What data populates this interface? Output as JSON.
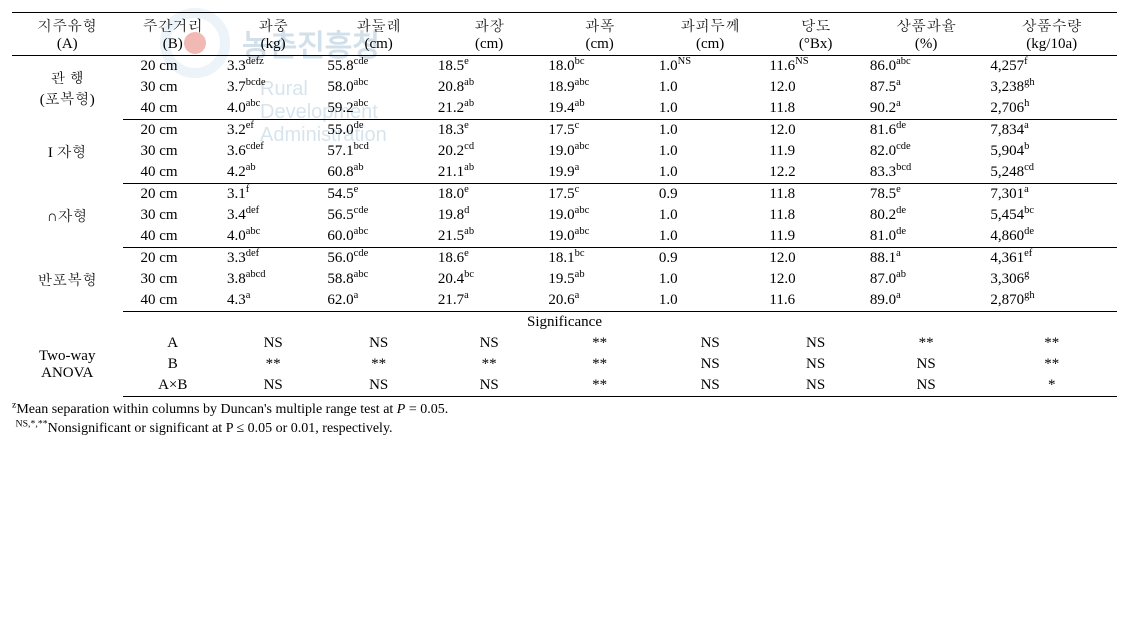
{
  "watermark": {
    "kr": "농촌진흥청",
    "en": "Rural Development Administration"
  },
  "headers": [
    {
      "l1": "지주유형",
      "l2": "(A)"
    },
    {
      "l1": "주간거리",
      "l2": "(B)"
    },
    {
      "l1": "과중",
      "l2": "(kg)"
    },
    {
      "l1": "과둘레",
      "l2": "(cm)"
    },
    {
      "l1": "과장",
      "l2": "(cm)"
    },
    {
      "l1": "과폭",
      "l2": "(cm)"
    },
    {
      "l1": "과피두께",
      "l2": "(cm)"
    },
    {
      "l1": "당도",
      "l2": "(°Bx)"
    },
    {
      "l1": "상품과율",
      "l2": "(%)"
    },
    {
      "l1": "상품수량",
      "l2": "(kg/10a)"
    }
  ],
  "groups": [
    {
      "label": "관    행\n(포복형)",
      "rows": [
        {
          "b": "20 cm",
          "c": [
            {
              "v": "3.3",
              "s": "defz"
            },
            {
              "v": "55.8",
              "s": "cde"
            },
            {
              "v": "18.5",
              "s": "e"
            },
            {
              "v": "18.0",
              "s": "bc"
            },
            {
              "v": "1.0",
              "s": "NS"
            },
            {
              "v": "11.6",
              "s": "NS"
            },
            {
              "v": "86.0",
              "s": "abc"
            },
            {
              "v": "4,257",
              "s": "f"
            }
          ]
        },
        {
          "b": "30 cm",
          "c": [
            {
              "v": "3.7",
              "s": "bcde"
            },
            {
              "v": "58.0",
              "s": "abc"
            },
            {
              "v": "20.8",
              "s": "ab"
            },
            {
              "v": "18.9",
              "s": "abc"
            },
            {
              "v": "1.0",
              "s": ""
            },
            {
              "v": "12.0",
              "s": ""
            },
            {
              "v": "87.5",
              "s": "a"
            },
            {
              "v": "3,238",
              "s": "gh"
            }
          ]
        },
        {
          "b": "40 cm",
          "c": [
            {
              "v": "4.0",
              "s": "abc"
            },
            {
              "v": "59.2",
              "s": "abc"
            },
            {
              "v": "21.2",
              "s": "ab"
            },
            {
              "v": "19.4",
              "s": "ab"
            },
            {
              "v": "1.0",
              "s": ""
            },
            {
              "v": "11.8",
              "s": ""
            },
            {
              "v": "90.2",
              "s": "a"
            },
            {
              "v": "2,706",
              "s": "h"
            }
          ]
        }
      ]
    },
    {
      "label": "I 자형",
      "rows": [
        {
          "b": "20 cm",
          "c": [
            {
              "v": "3.2",
              "s": "ef"
            },
            {
              "v": "55.0",
              "s": "de"
            },
            {
              "v": "18.3",
              "s": "e"
            },
            {
              "v": "17.5",
              "s": "c"
            },
            {
              "v": "1.0",
              "s": ""
            },
            {
              "v": "12.0",
              "s": ""
            },
            {
              "v": "81.6",
              "s": "de"
            },
            {
              "v": "7,834",
              "s": "a"
            }
          ]
        },
        {
          "b": "30 cm",
          "c": [
            {
              "v": "3.6",
              "s": "cdef"
            },
            {
              "v": "57.1",
              "s": "bcd"
            },
            {
              "v": "20.2",
              "s": "cd"
            },
            {
              "v": "19.0",
              "s": "abc"
            },
            {
              "v": "1.0",
              "s": ""
            },
            {
              "v": "11.9",
              "s": ""
            },
            {
              "v": "82.0",
              "s": "cde"
            },
            {
              "v": "5,904",
              "s": "b"
            }
          ]
        },
        {
          "b": "40 cm",
          "c": [
            {
              "v": "4.2",
              "s": "ab"
            },
            {
              "v": "60.8",
              "s": "ab"
            },
            {
              "v": "21.1",
              "s": "ab"
            },
            {
              "v": "19.9",
              "s": "a"
            },
            {
              "v": "1.0",
              "s": ""
            },
            {
              "v": "12.2",
              "s": ""
            },
            {
              "v": "83.3",
              "s": "bcd"
            },
            {
              "v": "5,248",
              "s": "cd"
            }
          ]
        }
      ]
    },
    {
      "label": "∩자형",
      "rows": [
        {
          "b": "20 cm",
          "c": [
            {
              "v": "3.1",
              "s": "f"
            },
            {
              "v": "54.5",
              "s": "e"
            },
            {
              "v": "18.0",
              "s": "e"
            },
            {
              "v": "17.5",
              "s": "c"
            },
            {
              "v": "0.9",
              "s": ""
            },
            {
              "v": "11.8",
              "s": ""
            },
            {
              "v": "78.5",
              "s": "e"
            },
            {
              "v": "7,301",
              "s": "a"
            }
          ]
        },
        {
          "b": "30 cm",
          "c": [
            {
              "v": "3.4",
              "s": "def"
            },
            {
              "v": "56.5",
              "s": "cde"
            },
            {
              "v": "19.8",
              "s": "d"
            },
            {
              "v": "19.0",
              "s": "abc"
            },
            {
              "v": "1.0",
              "s": ""
            },
            {
              "v": "11.8",
              "s": ""
            },
            {
              "v": "80.2",
              "s": "de"
            },
            {
              "v": "5,454",
              "s": "bc"
            }
          ]
        },
        {
          "b": "40 cm",
          "c": [
            {
              "v": "4.0",
              "s": "abc"
            },
            {
              "v": "60.0",
              "s": "abc"
            },
            {
              "v": "21.5",
              "s": "ab"
            },
            {
              "v": "19.0",
              "s": "abc"
            },
            {
              "v": "1.0",
              "s": ""
            },
            {
              "v": "11.9",
              "s": ""
            },
            {
              "v": "81.0",
              "s": "de"
            },
            {
              "v": "4,860",
              "s": "de"
            }
          ]
        }
      ]
    },
    {
      "label": "반포복형",
      "rows": [
        {
          "b": "20 cm",
          "c": [
            {
              "v": "3.3",
              "s": "def"
            },
            {
              "v": "56.0",
              "s": "cde"
            },
            {
              "v": "18.6",
              "s": "e"
            },
            {
              "v": "18.1",
              "s": "bc"
            },
            {
              "v": "0.9",
              "s": ""
            },
            {
              "v": "12.0",
              "s": ""
            },
            {
              "v": "88.1",
              "s": "a"
            },
            {
              "v": "4,361",
              "s": "ef"
            }
          ]
        },
        {
          "b": "30 cm",
          "c": [
            {
              "v": "3.8",
              "s": "abcd"
            },
            {
              "v": "58.8",
              "s": "abc"
            },
            {
              "v": "20.4",
              "s": "bc"
            },
            {
              "v": "19.5",
              "s": "ab"
            },
            {
              "v": "1.0",
              "s": ""
            },
            {
              "v": "12.0",
              "s": ""
            },
            {
              "v": "87.0",
              "s": "ab"
            },
            {
              "v": "3,306",
              "s": "g"
            }
          ]
        },
        {
          "b": "40 cm",
          "c": [
            {
              "v": "4.3",
              "s": "a"
            },
            {
              "v": "62.0",
              "s": "a"
            },
            {
              "v": "21.7",
              "s": "a"
            },
            {
              "v": "20.6",
              "s": "a"
            },
            {
              "v": "1.0",
              "s": ""
            },
            {
              "v": "11.6",
              "s": ""
            },
            {
              "v": "89.0",
              "s": "a"
            },
            {
              "v": "2,870",
              "s": "gh"
            }
          ]
        }
      ]
    }
  ],
  "sig": {
    "title": "Significance",
    "rowlabel": "Two-way\nANOVA",
    "rows": [
      {
        "f": "A",
        "v": [
          "NS",
          "NS",
          "NS",
          "**",
          "NS",
          "NS",
          "**",
          "**"
        ]
      },
      {
        "f": "B",
        "v": [
          "**",
          "**",
          "**",
          "**",
          "NS",
          "NS",
          "NS",
          "**"
        ]
      },
      {
        "f": "A×B",
        "v": [
          "NS",
          "NS",
          "NS",
          "**",
          "NS",
          "NS",
          "NS",
          "*"
        ]
      }
    ]
  },
  "footnotes": {
    "f1_sup": "z",
    "f1": "Mean separation within columns by Duncan's multiple range test at ",
    "f1_p": "P",
    "f1_tail": " = 0.05.",
    "f2_sup": "NS,*,**",
    "f2": "Nonsignificant or significant at P ≤ 0.05 or 0.01, respectively."
  },
  "style": {
    "font_size_pt": 15,
    "border_color": "#000000",
    "text_color": "#000000",
    "background": "#ffffff",
    "watermark_ring": "#c9dff0",
    "watermark_dot": "#d9362a",
    "watermark_text": "#7da8c6"
  }
}
